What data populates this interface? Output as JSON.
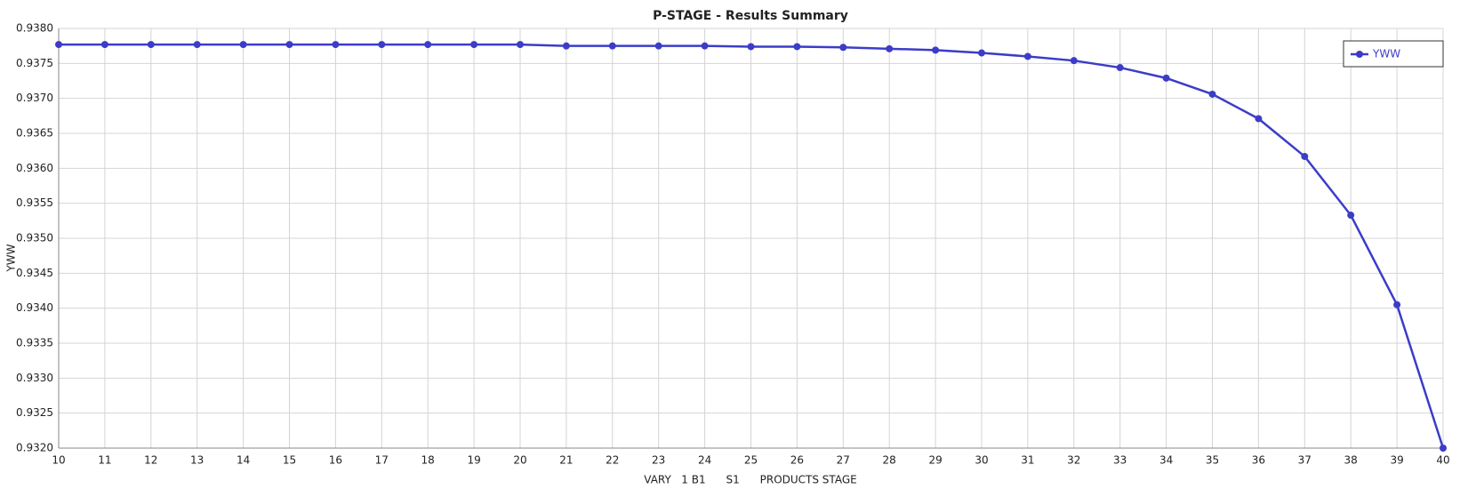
{
  "chart_data": {
    "type": "line",
    "title": "P-STAGE - Results Summary",
    "x_label": "VARY   1 B1      S1      PRODUCTS STAGE",
    "y_label": "YWW",
    "x": [
      10,
      11,
      12,
      13,
      14,
      15,
      16,
      17,
      18,
      19,
      20,
      21,
      22,
      23,
      24,
      25,
      26,
      27,
      28,
      29,
      30,
      31,
      32,
      33,
      34,
      35,
      36,
      37,
      38,
      39,
      40
    ],
    "series": [
      {
        "name": "YWW",
        "color": "#3c3cc8",
        "values": [
          0.93777,
          0.93777,
          0.93777,
          0.93777,
          0.93777,
          0.93777,
          0.93777,
          0.93777,
          0.93777,
          0.93777,
          0.93777,
          0.93775,
          0.93775,
          0.93775,
          0.93775,
          0.93774,
          0.93774,
          0.93773,
          0.93771,
          0.93769,
          0.93765,
          0.9376,
          0.93754,
          0.93744,
          0.93729,
          0.93706,
          0.93671,
          0.93617,
          0.93533,
          0.93405,
          0.932
        ]
      }
    ],
    "xlim": [
      10,
      40
    ],
    "xticks": [
      10,
      11,
      12,
      13,
      14,
      15,
      16,
      17,
      18,
      19,
      20,
      21,
      22,
      23,
      24,
      25,
      26,
      27,
      28,
      29,
      30,
      31,
      32,
      33,
      34,
      35,
      36,
      37,
      38,
      39,
      40
    ],
    "ylim": [
      0.932,
      0.938
    ],
    "yticks": [
      {
        "value": 0.932,
        "label": "0.9320"
      },
      {
        "value": 0.9325,
        "label": "0.9325"
      },
      {
        "value": 0.933,
        "label": "0.9330"
      },
      {
        "value": 0.9335,
        "label": "0.9335"
      },
      {
        "value": 0.934,
        "label": "0.9340"
      },
      {
        "value": 0.9345,
        "label": "0.9345"
      },
      {
        "value": 0.935,
        "label": "0.9350"
      },
      {
        "value": 0.9355,
        "label": "0.9355"
      },
      {
        "value": 0.936,
        "label": "0.9360"
      },
      {
        "value": 0.9365,
        "label": "0.9365"
      },
      {
        "value": 0.937,
        "label": "0.9370"
      },
      {
        "value": 0.9375,
        "label": "0.9375"
      },
      {
        "value": 0.938,
        "label": "0.9380"
      }
    ],
    "grid": true,
    "legend": "upper right"
  }
}
